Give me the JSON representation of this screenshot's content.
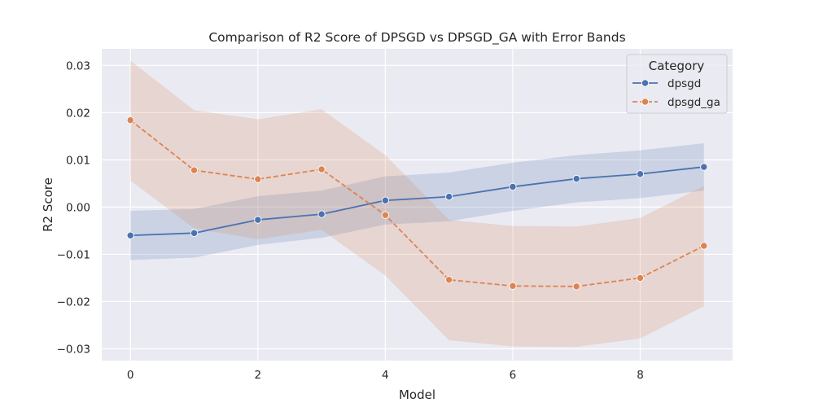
{
  "chart_data": {
    "type": "line",
    "title": "Comparison of R2 Score of DPSGD vs DPSGD_GA with Error Bands",
    "xlabel": "Model",
    "ylabel": "R2 Score",
    "xlim": [
      -0.45,
      9.45
    ],
    "ylim": [
      -0.0325,
      0.0335
    ],
    "xticks": [
      0,
      2,
      4,
      6,
      8
    ],
    "yticks": [
      -0.03,
      -0.02,
      -0.01,
      0.0,
      0.01,
      0.02,
      0.03
    ],
    "ytick_labels": [
      "−0.03",
      "−0.02",
      "−0.01",
      "0.00",
      "0.01",
      "0.02",
      "0.03"
    ],
    "grid": true,
    "legend": {
      "title": "Category",
      "placement": "top-right"
    },
    "x": [
      0,
      1,
      2,
      3,
      4,
      5,
      6,
      7,
      8,
      9
    ],
    "series": [
      {
        "name": "dpsgd",
        "color": "#4c72b0",
        "dash": "solid",
        "values": [
          -0.006,
          -0.0055,
          -0.0027,
          -0.0015,
          0.0014,
          0.0022,
          0.0043,
          0.006,
          0.007,
          0.0085
        ],
        "lower": [
          -0.0112,
          -0.0107,
          -0.008,
          -0.0065,
          -0.0037,
          -0.003,
          -0.0008,
          0.001,
          0.0019,
          0.0035
        ],
        "upper": [
          -0.0008,
          -0.0004,
          0.0023,
          0.0035,
          0.0065,
          0.0073,
          0.0094,
          0.011,
          0.012,
          0.0135
        ]
      },
      {
        "name": "dpsgd_ga",
        "color": "#dd8452",
        "dash": "dashed",
        "values": [
          0.0184,
          0.0078,
          0.0059,
          0.008,
          -0.0017,
          -0.0154,
          -0.0167,
          -0.0168,
          -0.015,
          -0.0082
        ],
        "lower": [
          0.0056,
          -0.0045,
          -0.0068,
          -0.0048,
          -0.0145,
          -0.0282,
          -0.0295,
          -0.0296,
          -0.0278,
          -0.021
        ],
        "upper": [
          0.031,
          0.0205,
          0.0186,
          0.0207,
          0.011,
          -0.0027,
          -0.004,
          -0.0041,
          -0.0023,
          0.0045
        ]
      }
    ]
  }
}
